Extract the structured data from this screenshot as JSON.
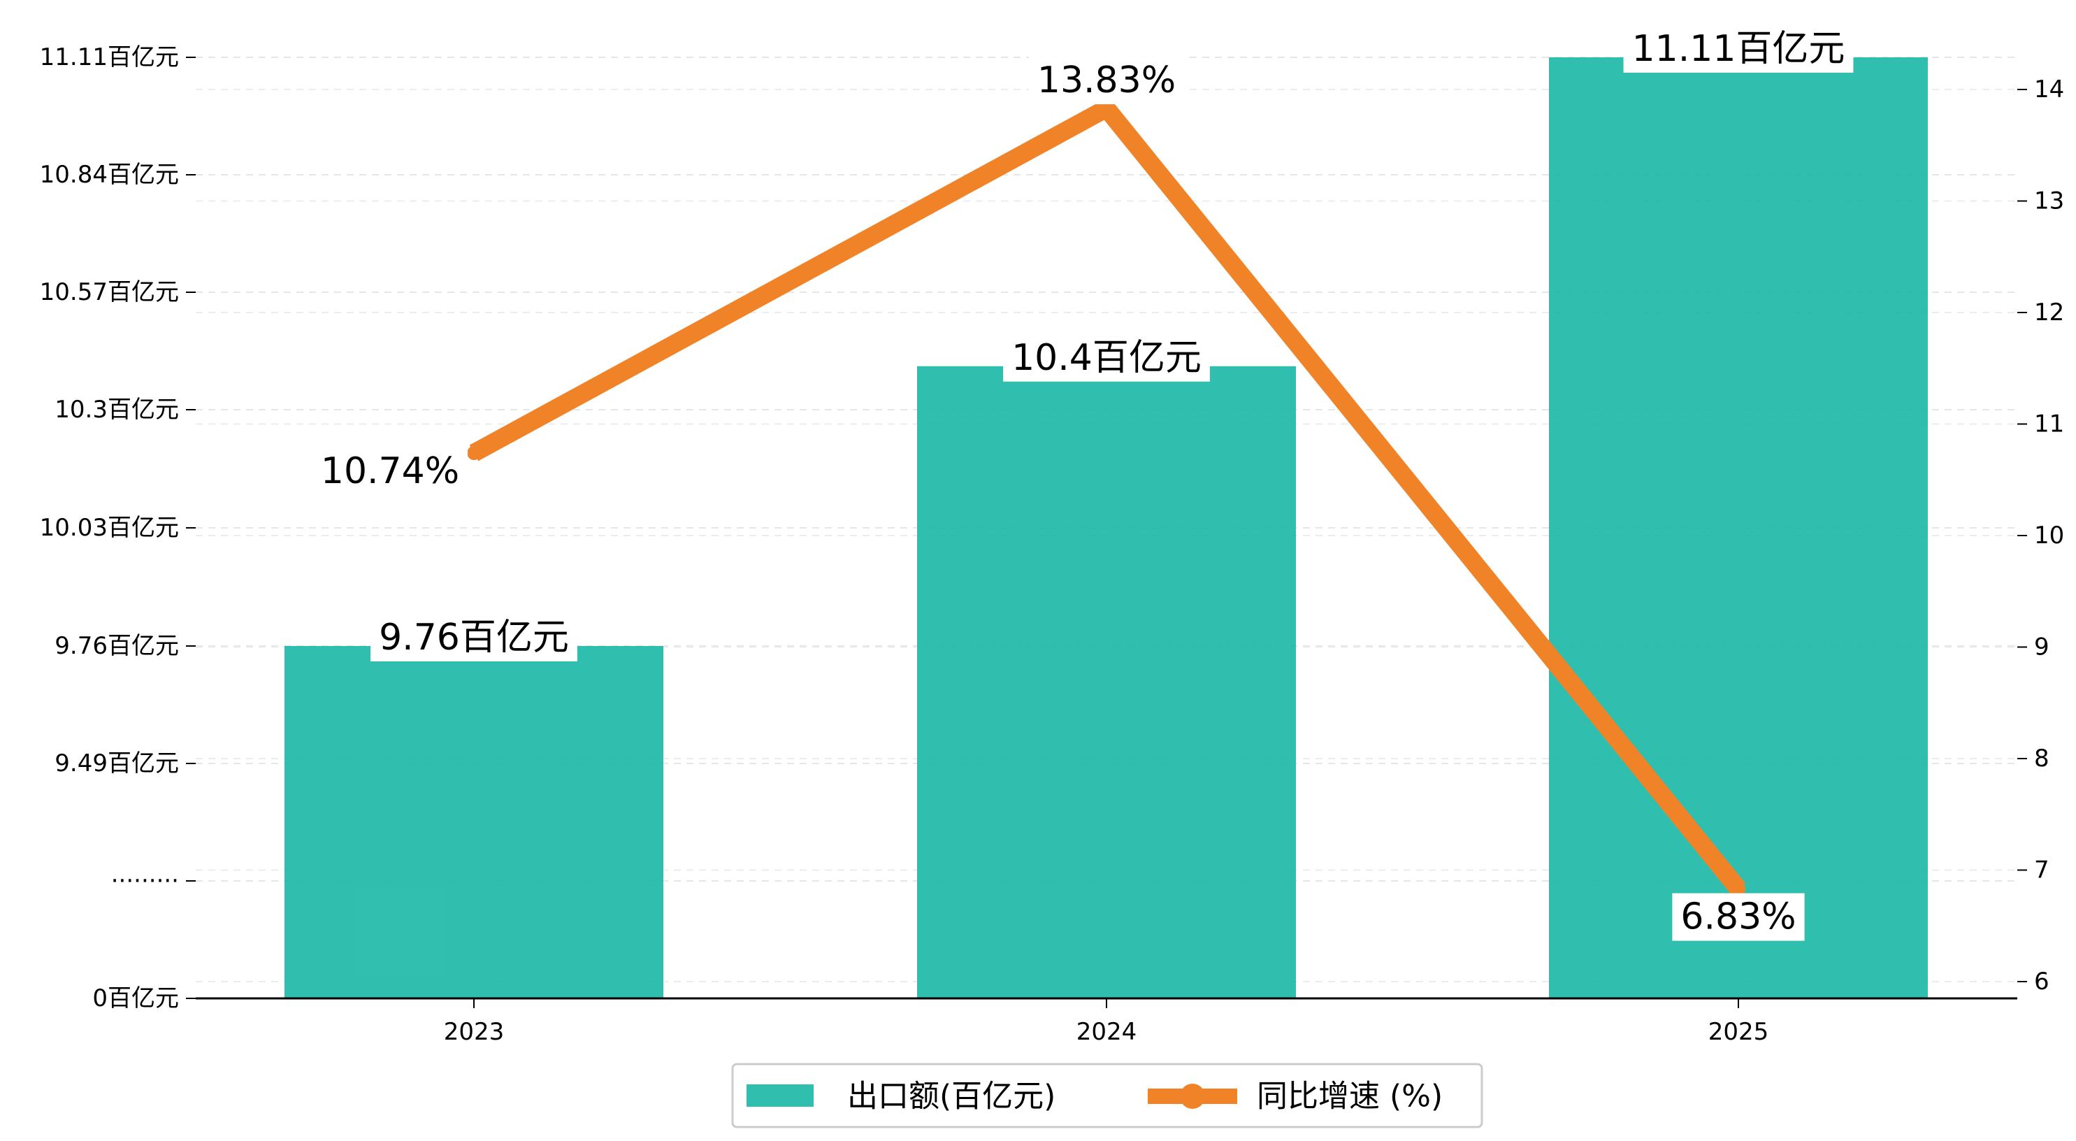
{
  "chart_data": {
    "type": "bar",
    "categories": [
      "2023",
      "2024",
      "2025"
    ],
    "series": [
      {
        "name": "出口额(百亿元)",
        "type": "bar",
        "axis": "left",
        "values": [
          9.76,
          10.4,
          11.11
        ],
        "data_labels": [
          "9.76百亿元",
          "10.4百亿元",
          "11.11百亿元"
        ],
        "color": "#1ab8a6"
      },
      {
        "name": "同比增速 (%)",
        "type": "line",
        "axis": "right",
        "values": [
          10.74,
          13.83,
          6.83
        ],
        "data_labels": [
          "10.74%",
          "13.83%",
          "6.83%"
        ],
        "color": "#f08328"
      }
    ],
    "left_axis": {
      "broken": true,
      "break_label": "·········",
      "ticks": [
        0,
        9.49,
        9.76,
        10.03,
        10.3,
        10.57,
        10.84,
        11.11
      ],
      "tick_labels": [
        "0百亿元",
        "",
        "9.49百亿元",
        "9.76百亿元",
        "10.03百亿元",
        "10.3百亿元",
        "10.57百亿元",
        "10.84百亿元",
        "11.11百亿元"
      ]
    },
    "right_axis": {
      "ylim": [
        5.85,
        14.85
      ],
      "ticks": [
        6,
        7,
        8,
        9,
        10,
        11,
        12,
        13,
        14
      ]
    },
    "grid": true,
    "legend_position": "bottom-center"
  }
}
